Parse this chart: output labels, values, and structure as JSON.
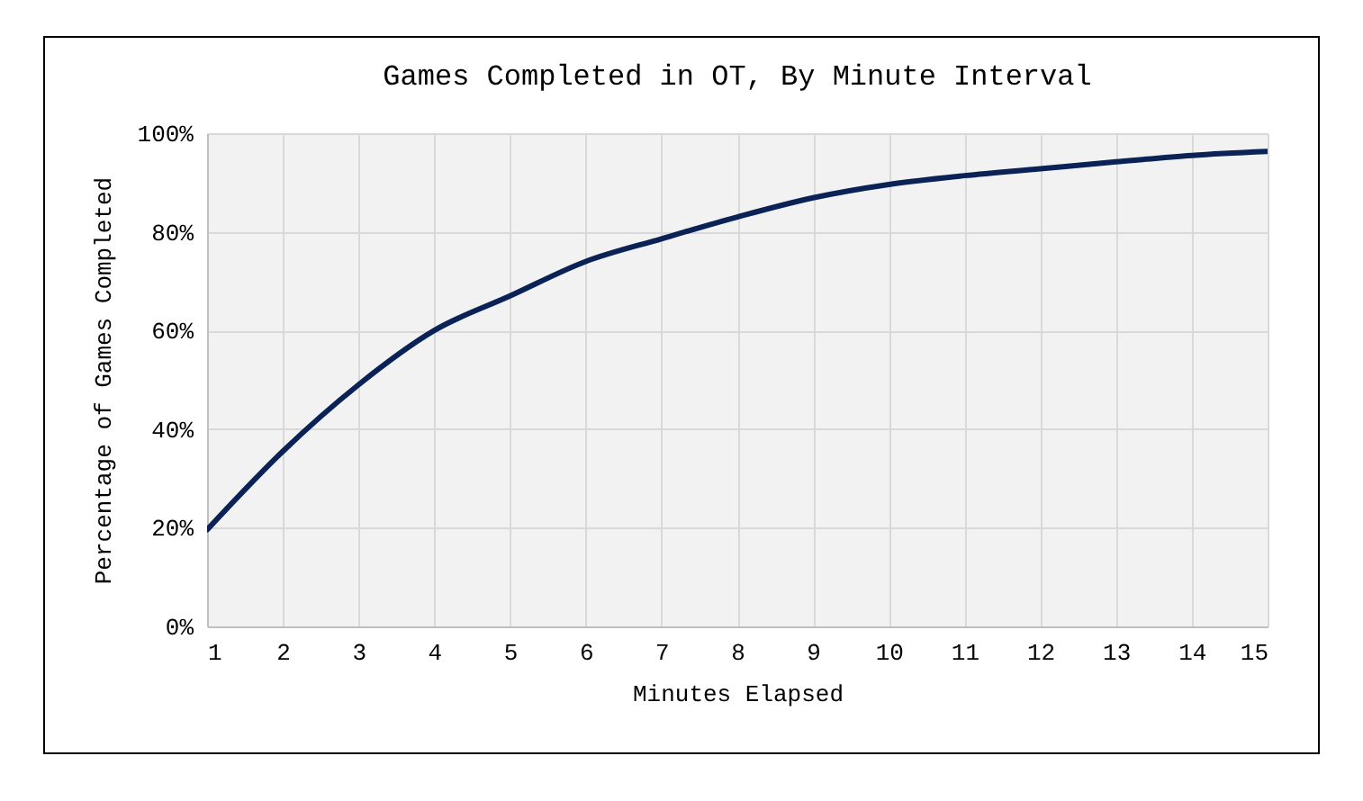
{
  "chart_data": {
    "type": "line",
    "title": "Games Completed in OT, By Minute Interval",
    "xlabel": "Minutes Elapsed",
    "ylabel": "Percentage of Games Completed",
    "x": [
      1,
      2,
      3,
      4,
      5,
      6,
      7,
      8,
      9,
      10,
      11,
      12,
      13,
      14,
      15
    ],
    "series": [
      {
        "color": "#0b2256",
        "values": [
          19.6,
          35.5,
          49,
          60,
          67,
          74,
          78.6,
          83,
          86.9,
          89.6,
          91.4,
          92.8,
          94.2,
          95.5,
          96.3
        ]
      }
    ],
    "xlim": [
      1,
      15
    ],
    "xticks": [
      1,
      2,
      3,
      4,
      5,
      6,
      7,
      8,
      9,
      10,
      11,
      12,
      13,
      14,
      15
    ],
    "ylim": [
      0,
      100
    ],
    "yticks": [
      {
        "value": 0,
        "label": "0%"
      },
      {
        "value": 20,
        "label": "20%"
      },
      {
        "value": 40,
        "label": "40%"
      },
      {
        "value": 60,
        "label": "60%"
      },
      {
        "value": 80,
        "label": "80%"
      },
      {
        "value": 100,
        "label": "100%"
      }
    ],
    "grid": true,
    "marker": "none",
    "line_style": "solid"
  }
}
